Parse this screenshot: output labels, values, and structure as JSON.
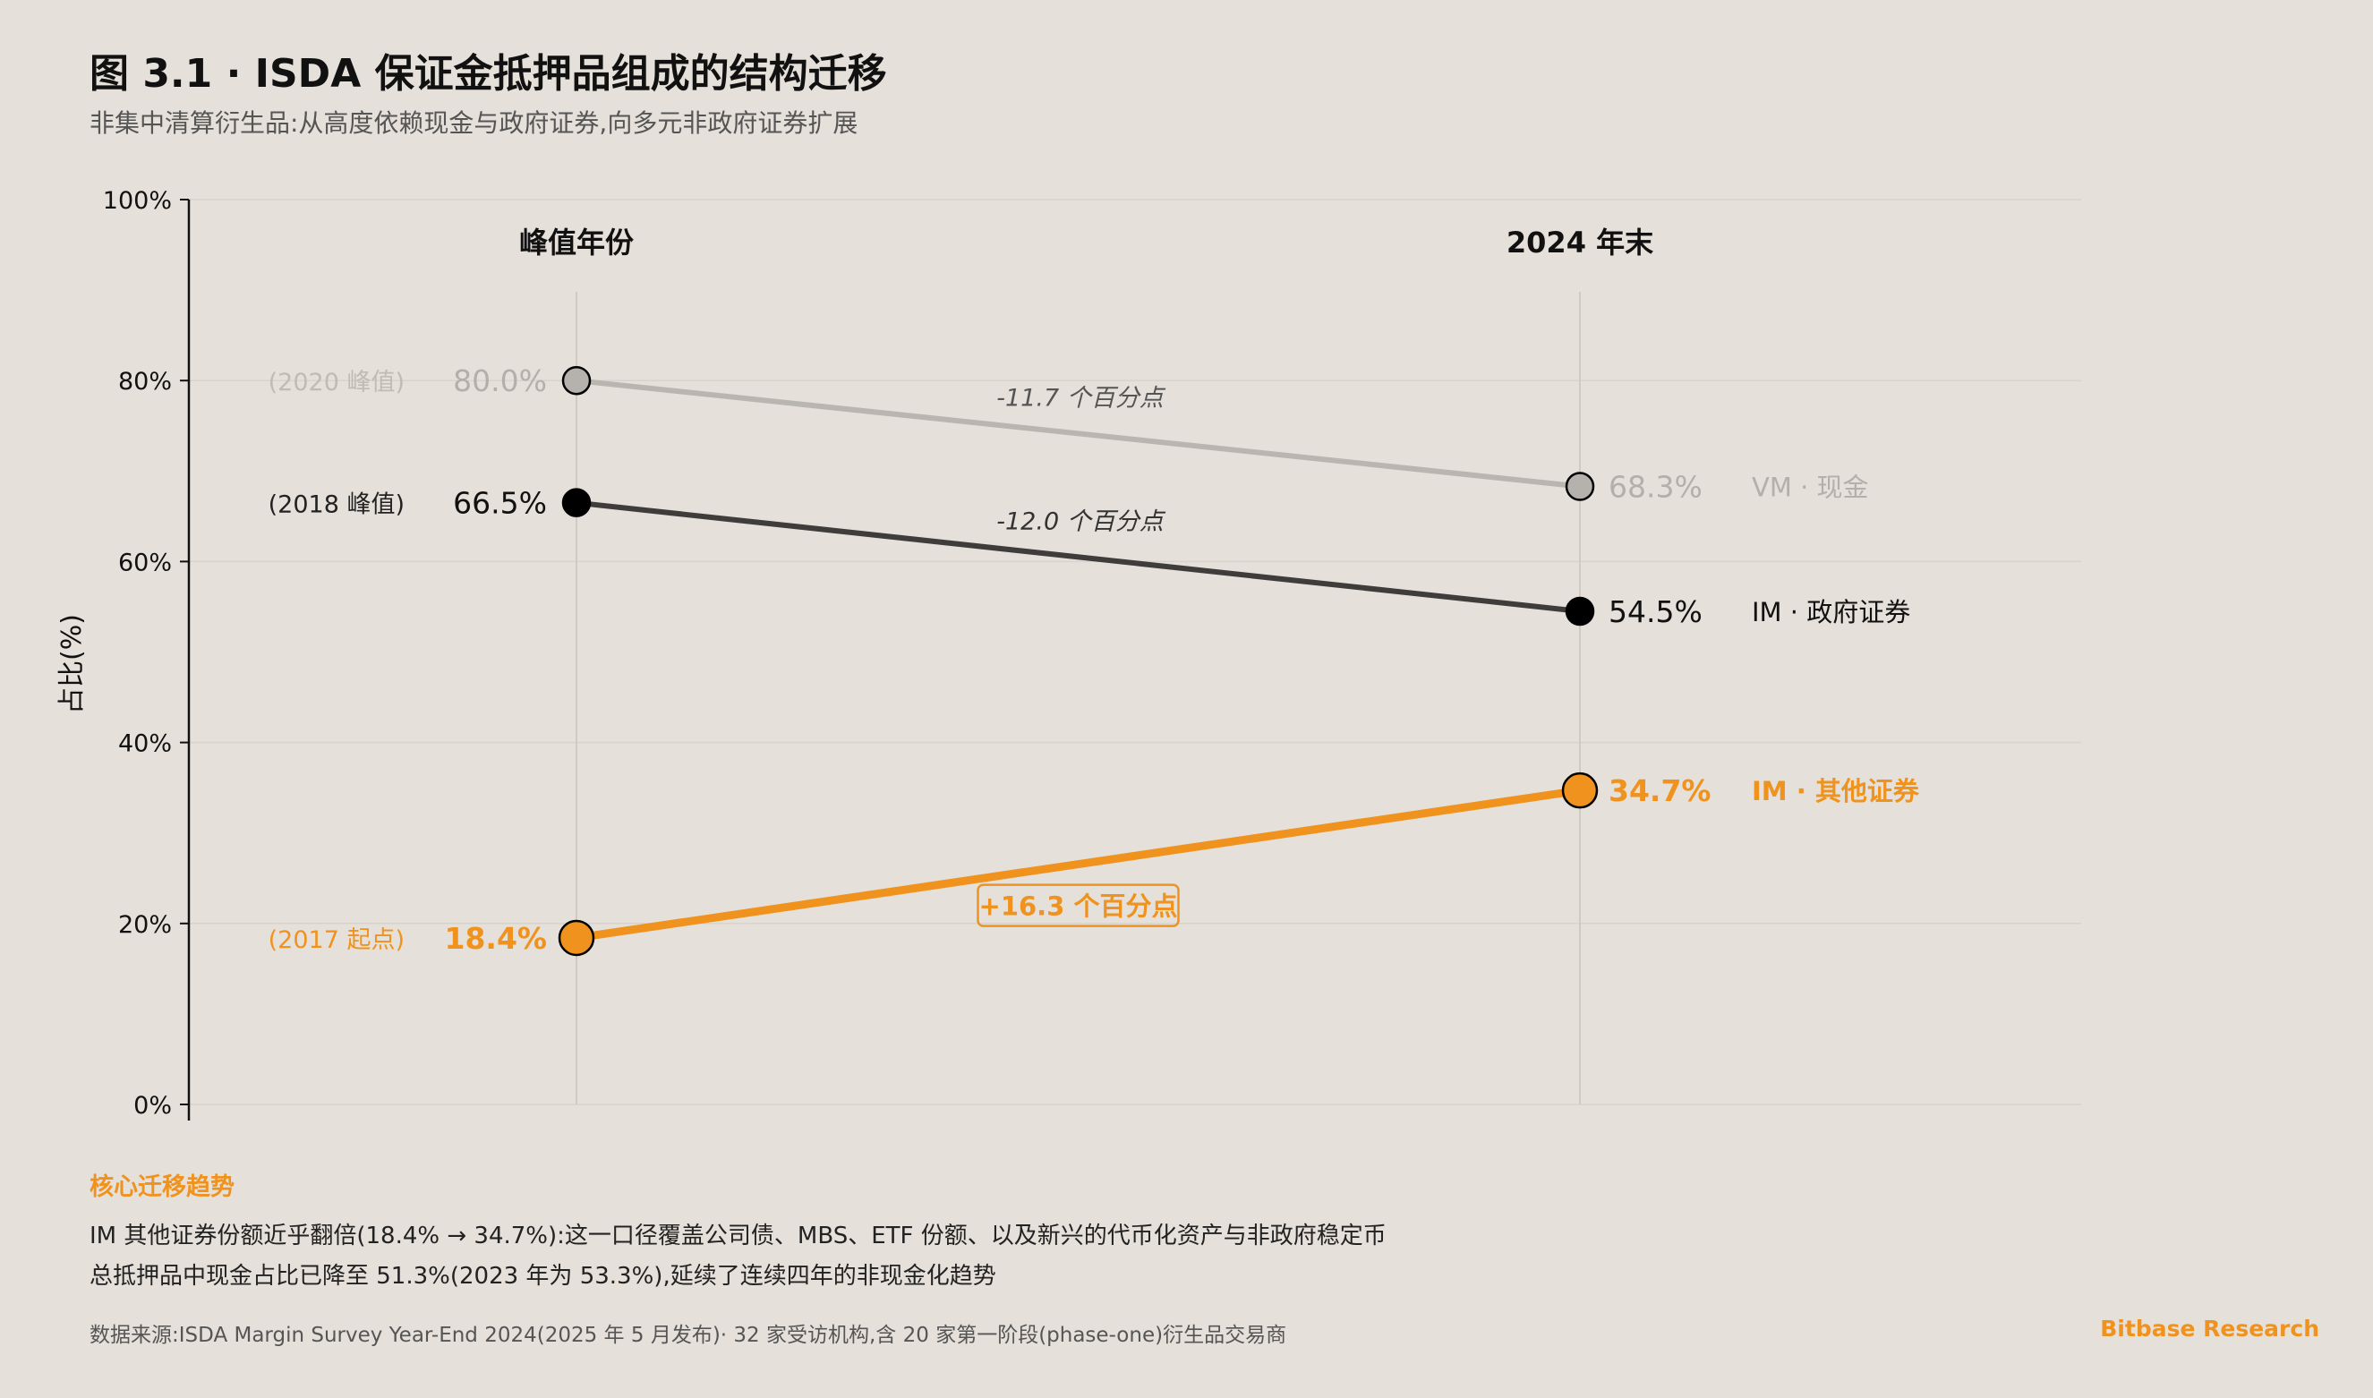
{
  "header": {
    "title": "图 3.1 · ISDA 保证金抵押品组成的结构迁移",
    "subtitle": "非集中清算衍生品:从高度依赖现金与政府证券,向多元非政府证券扩展"
  },
  "chart_data": {
    "type": "line",
    "subtype": "slope",
    "ylabel": "占比(%)",
    "ylim": [
      0,
      100
    ],
    "yticks": [
      {
        "value": 0,
        "label": "0%"
      },
      {
        "value": 20,
        "label": "20%"
      },
      {
        "value": 40,
        "label": "40%"
      },
      {
        "value": 60,
        "label": "60%"
      },
      {
        "value": 80,
        "label": "80%"
      },
      {
        "value": 100,
        "label": "100%"
      }
    ],
    "grid": true,
    "columns": [
      "峰值年份",
      "2024 年末"
    ],
    "series": [
      {
        "name": "VM · 现金",
        "start": 80.0,
        "end": 68.3,
        "start_label": "80.0%",
        "end_label": "68.3%",
        "start_note": "(2020 峰值)",
        "change_label": "-11.7 个百分点",
        "color": "#b9b6b1",
        "marker": "#b5b2ad",
        "emphasis": "muted"
      },
      {
        "name": "IM · 政府证券",
        "start": 66.5,
        "end": 54.5,
        "start_label": "66.5%",
        "end_label": "54.5%",
        "start_note": "(2018 峰值)",
        "change_label": "-12.0 个百分点",
        "color": "#3f3d3b",
        "marker": "#000000",
        "emphasis": "normal"
      },
      {
        "name": "IM · 其他证券",
        "start": 18.4,
        "end": 34.7,
        "start_label": "18.4%",
        "end_label": "34.7%",
        "start_note": "(2017 起点)",
        "change_label": "+16.3 个百分点",
        "color": "#f0921e",
        "marker": "#f0921e",
        "emphasis": "highlight"
      }
    ]
  },
  "takeaway": {
    "heading": "核心迁移趋势",
    "line1": "IM 其他证券份额近乎翻倍(18.4% → 34.7%):这一口径覆盖公司债、MBS、ETF 份额、以及新兴的代币化资产与非政府稳定币",
    "line2": "总抵押品中现金占比已降至 51.3%(2023 年为 53.3%),延续了连续四年的非现金化趋势"
  },
  "footer": {
    "source": "数据来源:ISDA Margin Survey Year-End 2024(2025 年 5 月发布)· 32 家受访机构,含 20 家第一阶段(phase-one)衍生品交易商",
    "brand": "Bitbase Research"
  },
  "colors": {
    "background": "#e5e0d9",
    "accent": "#f0921e",
    "muted": "#b9b6b1",
    "dark": "#3f3d3b",
    "grid": "#d8d3cc"
  }
}
